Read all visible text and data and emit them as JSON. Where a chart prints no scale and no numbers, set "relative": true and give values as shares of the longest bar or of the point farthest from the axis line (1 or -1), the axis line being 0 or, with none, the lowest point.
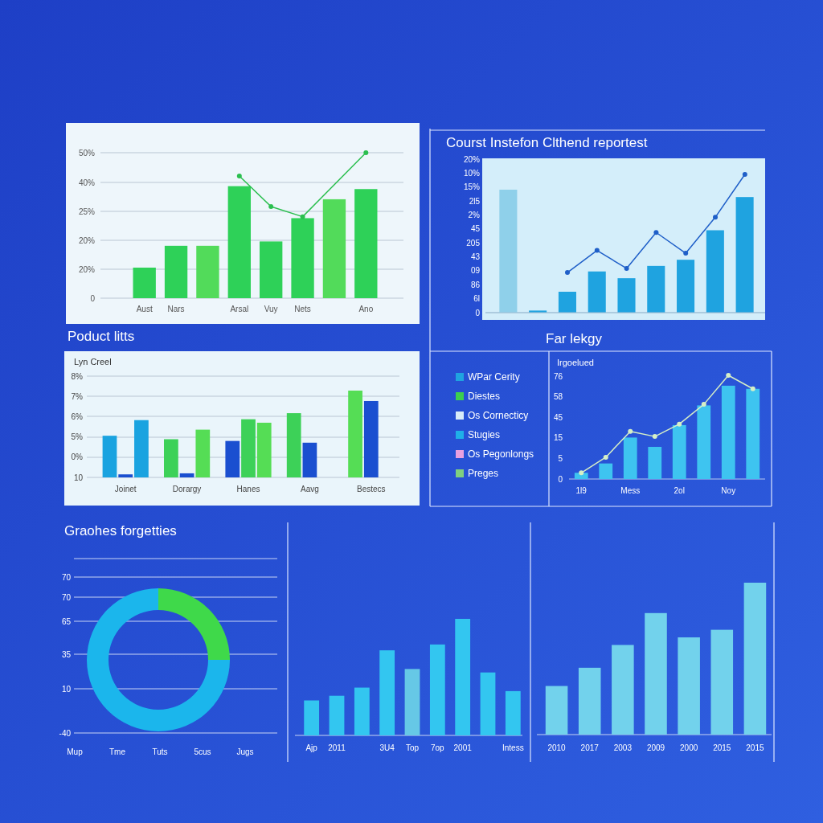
{
  "chart_data": [
    {
      "type": "bar",
      "relative": true,
      "categories": [
        "Aust",
        "Nars",
        null,
        "Arsal",
        "Vuy",
        "Nets",
        null,
        "Ano"
      ],
      "annotations": [
        "0",
        "20%",
        "20%",
        "25%",
        "40%",
        "50%"
      ],
      "grid": "y",
      "marker": "circle",
      "series": [
        {
          "type": "bar",
          "colors": [
            "#2ed158",
            "#2ed158",
            "#52db5a",
            "#2ed158",
            "#2ed158",
            "#2ed158",
            "#52db5a",
            "#2ed158"
          ],
          "values": [
            0.21,
            0.36,
            0.36,
            0.77,
            0.39,
            0.55,
            0.68,
            0.75
          ]
        },
        {
          "type": "line",
          "color": "#2bbf4f",
          "values": [
            null,
            null,
            null,
            0.84,
            0.63,
            0.56,
            null,
            1.0
          ]
        }
      ]
    },
    {
      "type": "bar",
      "relative": true,
      "title": "Courst Instefon Clthend reportest",
      "categories": [
        null,
        null,
        null,
        null,
        null,
        null,
        null,
        null,
        null
      ],
      "annotations": [
        "0",
        "6l",
        "86",
        "09",
        "43",
        "205",
        "45",
        "2%",
        "2l5",
        "15%",
        "10%",
        "20%"
      ],
      "series": [
        {
          "type": "bar",
          "colors": [
            "#8fd0ea",
            "#1fa3e0",
            "#1fa3e0",
            "#1fa3e0",
            "#1fa3e0",
            "#1fa3e0",
            "#1fa3e0",
            "#1fa3e0",
            "#1fa3e0"
          ],
          "values": [
            1.0,
            0.017,
            0.17,
            0.335,
            0.28,
            0.38,
            0.43,
            0.67,
            0.94
          ]
        }
      ]
    },
    {
      "type": "line",
      "relative": true,
      "categories": [
        null,
        null,
        null,
        null,
        null,
        null,
        null
      ],
      "marker": "circle",
      "series": [
        {
          "color": "#1f5fc8",
          "values": [
            0.29,
            0.45,
            0.32,
            0.58,
            0.43,
            0.69,
            1.0
          ]
        }
      ]
    },
    {
      "type": "bar",
      "relative": true,
      "title": "Poduct litts",
      "ylabel": "Lyn Creel",
      "categories": [
        "Joinet",
        "Dorargy",
        "Hanes",
        "Aavg",
        "Bestecs"
      ],
      "annotations": [
        "10",
        "0%",
        "5%",
        "6%",
        "7%",
        "8%"
      ],
      "grid": "y",
      "series": [
        {
          "colors": [
            "#1aa3e0",
            "#3dd158",
            "#1a4fd0",
            "#3dd158",
            "#55dd55"
          ],
          "values": [
            0.48,
            0.44,
            0.42,
            0.74,
            1.0
          ]
        },
        {
          "colors": [
            "#1a4fd0",
            "#1a4fd0",
            "#3dd158",
            "#1a4fd0",
            "#1a4fd0"
          ],
          "values": [
            0.035,
            0.047,
            0.67,
            0.4,
            0.88
          ]
        },
        {
          "colors": [
            "#1aa3e0",
            "#55dd55",
            "#55dd55",
            null,
            null
          ],
          "values": [
            0.66,
            0.55,
            0.63,
            null,
            null
          ]
        }
      ]
    },
    {
      "type": "other",
      "categories": [
        "WPar Cerity",
        "Diestes",
        "Os Cornecticy",
        "Stugies",
        "Os Pegonlongs",
        "Preges"
      ],
      "colors": [
        "#1fa3e0",
        "#3ccf4e",
        "#d8ecf8",
        "#1fb0e8",
        "#e8a0e0",
        "#7fd07f"
      ]
    },
    {
      "type": "bar",
      "relative": true,
      "title": "Far lekgy",
      "ylabel": "Irgoelued",
      "categories": [
        "1l9",
        null,
        "Mess",
        null,
        "2ol",
        null,
        "Noy",
        null
      ],
      "annotations": [
        "0",
        "5",
        "15",
        "45",
        "58",
        "76"
      ],
      "marker": "circle",
      "series": [
        {
          "type": "bar",
          "color": "#3ec4f0",
          "values": [
            0.06,
            0.15,
            0.4,
            0.31,
            0.52,
            0.71,
            0.9,
            0.87
          ]
        },
        {
          "type": "line",
          "color": "#d6efc6",
          "values": [
            0.06,
            0.21,
            0.46,
            0.41,
            0.53,
            0.72,
            1.0,
            0.87
          ]
        }
      ]
    },
    {
      "type": "donut",
      "title": "Graohes forgetties",
      "values": [
        25,
        75
      ],
      "colors": [
        "#3fd94a",
        "#1bb6ec"
      ],
      "annotations": [
        "-40",
        "10",
        "35",
        "65",
        "70",
        "70",
        "Mup",
        "Tme",
        "Tuts",
        "5cus",
        "Jugs"
      ],
      "grid": "y"
    },
    {
      "type": "bar",
      "relative": true,
      "categories": [
        "Ajp",
        "2011",
        null,
        "3U4",
        "Top",
        "7op",
        "2001",
        null,
        "Intess"
      ],
      "values": [
        0.3,
        0.34,
        0.41,
        0.73,
        0.57,
        0.78,
        1,
        0.54,
        0.38
      ],
      "colors": [
        "#33c6f0",
        "#33c6f0",
        "#33c6f0",
        "#33c6f0",
        "#66c8e6",
        "#33c6f0",
        "#33c6f0",
        "#33c6f0",
        "#33c6f0"
      ]
    },
    {
      "type": "bar",
      "relative": true,
      "categories": [
        "2010",
        "2017",
        "2003",
        "2009",
        "2000",
        "2015",
        "2015"
      ],
      "values": [
        0.32,
        0.44,
        0.59,
        0.8,
        0.64,
        0.69,
        1
      ],
      "color": "#72d2ec"
    }
  ]
}
